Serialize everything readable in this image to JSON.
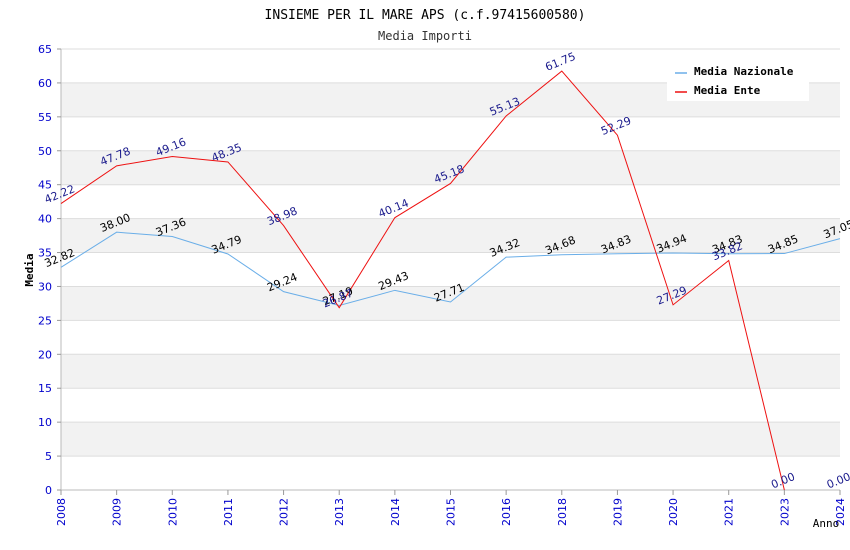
{
  "chart_data": {
    "type": "line",
    "title": "INSIEME PER IL MARE APS (c.f.97415600580)",
    "subtitle": "Media Importi",
    "xlabel": "Anno",
    "ylabel": "Media",
    "ylim": [
      0,
      65
    ],
    "ytick_step": 5,
    "grid": true,
    "legend_position": "top-right",
    "categories": [
      "2008",
      "2009",
      "2010",
      "2011",
      "2012",
      "2013",
      "2014",
      "2015",
      "2016",
      "2018",
      "2019",
      "2020",
      "2021",
      "2023",
      "2024"
    ],
    "series": [
      {
        "name": "Media Nazionale",
        "color": "#6aaee8",
        "label_color": "#000000",
        "values": [
          32.82,
          38.0,
          37.36,
          34.79,
          29.24,
          27.19,
          29.43,
          27.71,
          34.32,
          34.68,
          34.83,
          34.94,
          34.83,
          34.85,
          37.05
        ],
        "labels": [
          "32.82",
          "38.00",
          "37.36",
          "34.79",
          "29.24",
          "27.19",
          "29.43",
          "27.71",
          "34.32",
          "34.68",
          "34.83",
          "34.94",
          "34.83",
          "34.85",
          "37.05"
        ]
      },
      {
        "name": "Media Ente",
        "color": "#ee1111",
        "label_color": "#1a1a8c",
        "values": [
          42.22,
          47.78,
          49.16,
          48.35,
          38.98,
          26.87,
          40.14,
          45.18,
          55.13,
          61.75,
          52.29,
          27.29,
          33.82,
          0.0,
          0.0
        ],
        "labels": [
          "42.22",
          "47.78",
          "49.16",
          "48.35",
          "38.98",
          "26.87",
          "40.14",
          "45.18",
          "55.13",
          "61.75",
          "52.29",
          "27.29",
          "33.82",
          "0.00",
          "0.00"
        ],
        "draw_last_segment": false
      }
    ]
  },
  "colors": {
    "axis_tick_text": "#0000cc",
    "band_fill": "#f2f2f2",
    "grid_line": "#dddddd",
    "title_text": "#000000",
    "subtitle_text": "#333333"
  }
}
